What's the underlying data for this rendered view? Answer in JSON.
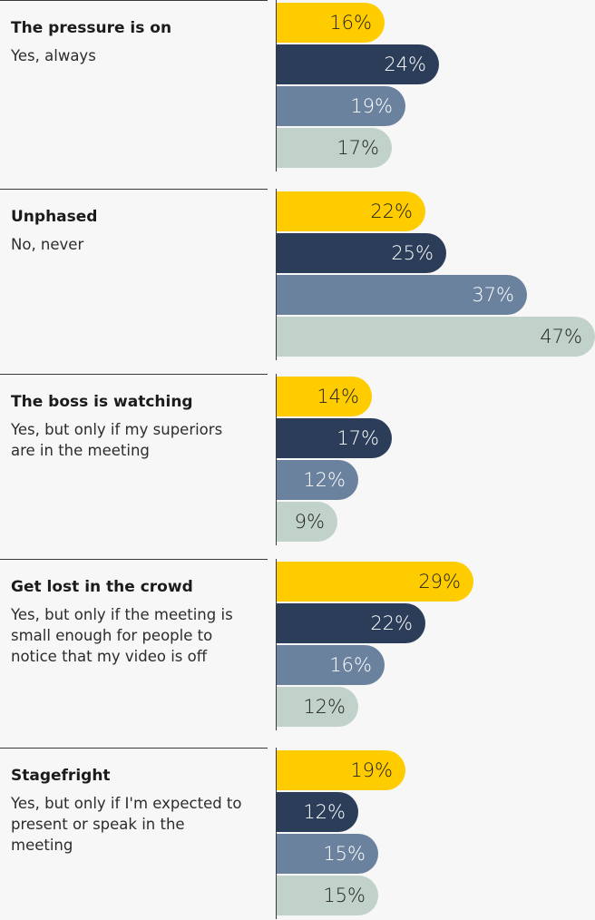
{
  "colors": [
    "#ffcc00",
    "#2b3d58",
    "#6b829e",
    "#c0d2ca"
  ],
  "label_colors": [
    "#1f1f1f",
    "#ffffff",
    "#ffffff",
    "#1f1f1f"
  ],
  "groups": [
    {
      "title": "The pressure is on",
      "subtitle": "Yes, always"
    },
    {
      "title": "Unphased",
      "subtitle": "No, never"
    },
    {
      "title": "The boss is watching",
      "subtitle": "Yes, but only if my superiors are in the meeting"
    },
    {
      "title": "Get lost in the crowd",
      "subtitle": "Yes, but only if the meeting is small enough for people to notice that my video is off"
    },
    {
      "title": "Stagefright",
      "subtitle": "Yes, but only if I'm expected to present or speak in the meeting"
    }
  ],
  "chart_data": {
    "type": "bar",
    "orientation": "horizontal",
    "categories": [
      "The pressure is on",
      "Unphased",
      "The boss is watching",
      "Get lost in the crowd",
      "Stagefright"
    ],
    "series": [
      {
        "values": [
          16,
          22,
          14,
          29,
          19
        ]
      },
      {
        "values": [
          24,
          25,
          17,
          22,
          12
        ]
      },
      {
        "values": [
          19,
          37,
          12,
          16,
          15
        ]
      },
      {
        "values": [
          17,
          47,
          9,
          12,
          15
        ]
      }
    ],
    "value_suffix": "%",
    "xlim": [
      0,
      47
    ],
    "grid": false
  }
}
